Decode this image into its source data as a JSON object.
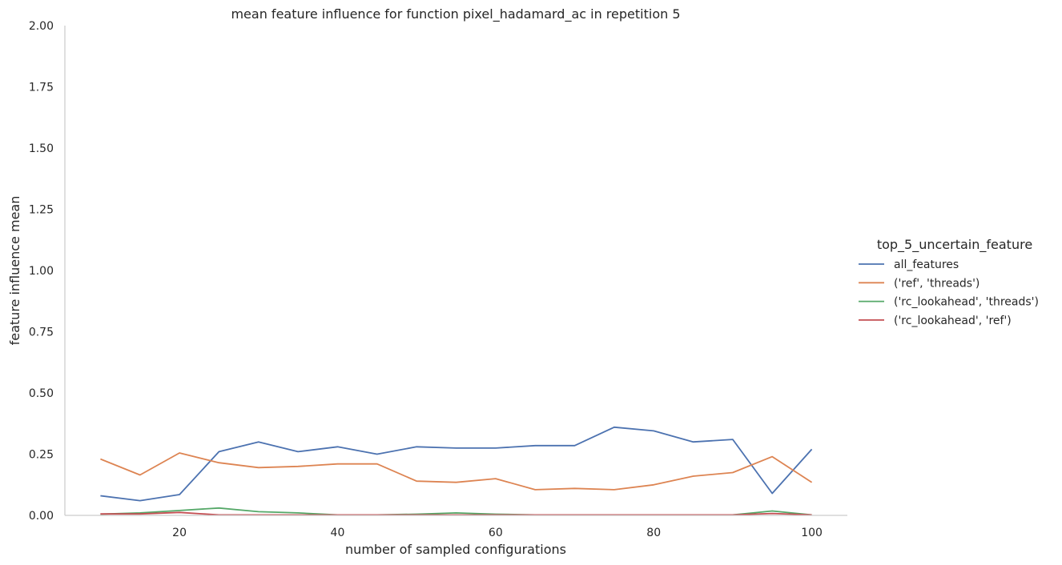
{
  "chart_data": {
    "type": "line",
    "title": "mean feature influence for function pixel_hadamard_ac in repetition 5",
    "xlabel": "number of sampled configurations",
    "ylabel": "feature influence mean",
    "xlim": [
      5.5,
      104.5
    ],
    "ylim": [
      0,
      2
    ],
    "xticks": [
      20,
      40,
      60,
      80,
      100
    ],
    "xtick_labels": [
      "20",
      "40",
      "60",
      "80",
      "100"
    ],
    "yticks": [
      0,
      0.25,
      0.5,
      0.75,
      1.0,
      1.25,
      1.5,
      1.75,
      2.0
    ],
    "ytick_labels": [
      "0.00",
      "0.25",
      "0.50",
      "0.75",
      "1.00",
      "1.25",
      "1.50",
      "1.75",
      "2.00"
    ],
    "grid": false,
    "legend_title": "top_5_uncertain_feature",
    "legend_position": "center-right outside",
    "x": [
      10,
      15,
      20,
      25,
      30,
      35,
      40,
      45,
      50,
      55,
      60,
      65,
      70,
      75,
      80,
      85,
      90,
      95,
      100
    ],
    "series": [
      {
        "name": "all_features",
        "color": "#4c72b0",
        "values": [
          0.08,
          0.06,
          0.085,
          0.26,
          0.3,
          0.26,
          0.28,
          0.25,
          0.28,
          0.275,
          0.275,
          0.285,
          0.285,
          0.36,
          0.345,
          0.3,
          0.31,
          0.09,
          0.27
        ]
      },
      {
        "name": "('ref', 'threads')",
        "color": "#dd8452",
        "values": [
          0.23,
          0.165,
          0.255,
          0.215,
          0.195,
          0.2,
          0.21,
          0.21,
          0.14,
          0.135,
          0.15,
          0.105,
          0.11,
          0.105,
          0.125,
          0.16,
          0.175,
          0.24,
          0.135
        ]
      },
      {
        "name": "('rc_lookahead', 'threads')",
        "color": "#55a868",
        "values": [
          0.005,
          0.01,
          0.02,
          0.03,
          0.015,
          0.01,
          0.002,
          0.002,
          0.005,
          0.01,
          0.005,
          0.002,
          0.002,
          0.002,
          0.002,
          0.002,
          0.002,
          0.018,
          0.002
        ]
      },
      {
        "name": "('rc_lookahead', 'ref')",
        "color": "#c44e52",
        "values": [
          0.006,
          0.006,
          0.012,
          0.002,
          0.002,
          0.002,
          0.002,
          0.002,
          0.002,
          0.002,
          0.002,
          0.002,
          0.002,
          0.002,
          0.002,
          0.002,
          0.002,
          0.008,
          0.002
        ]
      }
    ]
  }
}
